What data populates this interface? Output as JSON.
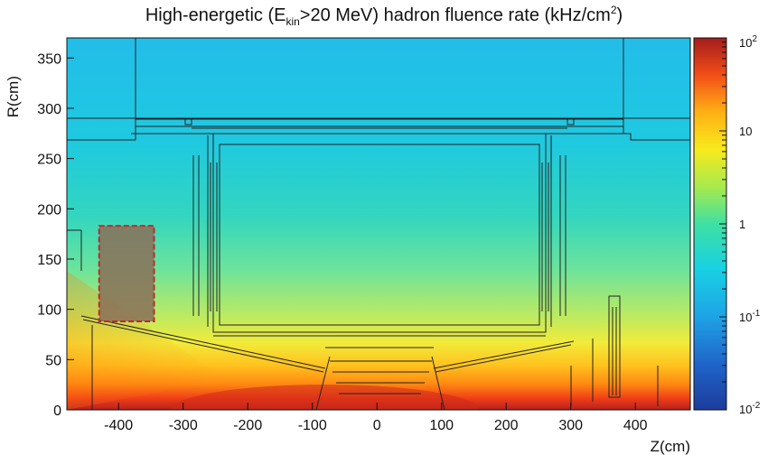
{
  "chart_data": {
    "type": "heatmap",
    "title": {
      "prefix": "High-energetic (E",
      "sub": "kin",
      "middle": ">20 MeV) hadron fluence rate (kHz/cm",
      "sup": "2",
      "suffix": ")"
    },
    "xlabel": "Z(cm)",
    "ylabel": "R(cm)",
    "xlim": [
      -480,
      485
    ],
    "ylim": [
      0,
      370
    ],
    "x_ticks": [
      -400,
      -300,
      -200,
      -100,
      0,
      100,
      200,
      300,
      400
    ],
    "y_ticks": [
      0,
      50,
      100,
      150,
      200,
      250,
      300,
      350
    ],
    "colorbar": {
      "scale": "log",
      "range": [
        0.01,
        100
      ],
      "labels": [
        {
          "value": 100,
          "base": "10",
          "exp": "2"
        },
        {
          "value": 10,
          "base": "10",
          "exp": ""
        },
        {
          "value": 1,
          "base": "1",
          "exp": ""
        },
        {
          "value": 0.1,
          "base": "10",
          "exp": "-1"
        },
        {
          "value": 0.01,
          "base": "10",
          "exp": "-2"
        }
      ]
    },
    "highlight_region": {
      "z": [
        -430,
        -345
      ],
      "r": [
        88,
        183
      ],
      "outline_color": "#c0272d"
    }
  },
  "colors": {
    "high": "#a51e1e",
    "mid": "#ffe000",
    "low": "#00c8e8",
    "min": "#1d3c9c"
  }
}
